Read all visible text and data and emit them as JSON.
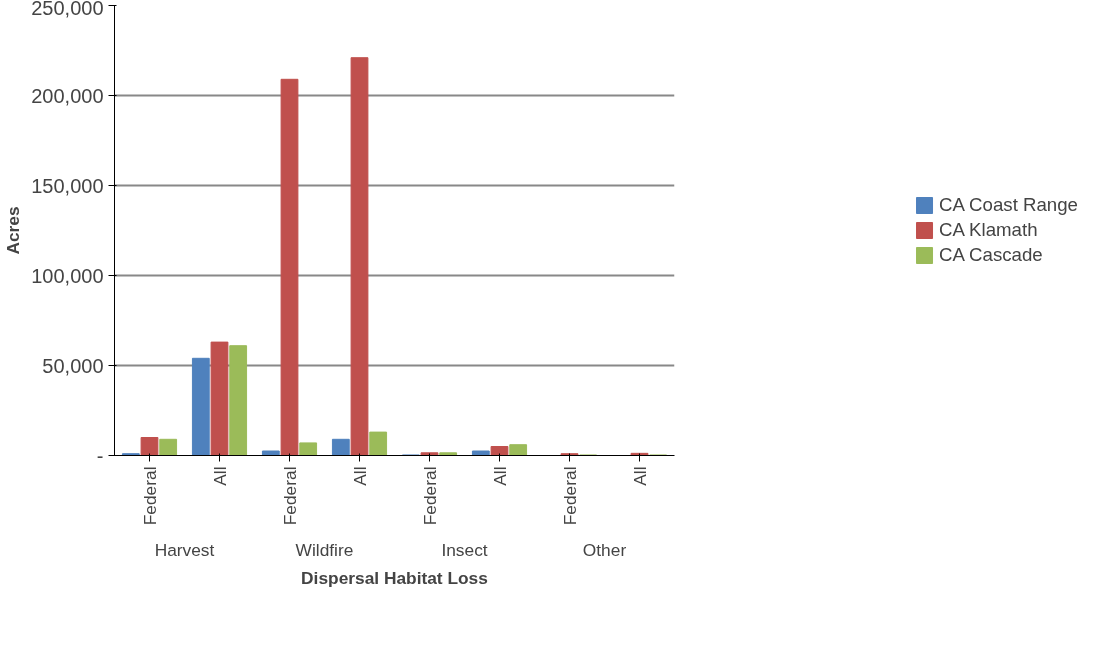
{
  "chart_data": {
    "type": "bar",
    "xlabel": "Dispersal Habitat Loss",
    "ylabel": "Acres",
    "categories": [
      "Federal",
      "All",
      "Federal",
      "All",
      "Federal",
      "All",
      "Federal",
      "All"
    ],
    "annotations": [
      "Harvest",
      "Wildfire",
      "Insect",
      "Other"
    ],
    "series": [
      {
        "name": "CA Coast Range",
        "color": "#4f81bd",
        "values": [
          1000,
          54000,
          2500,
          9000,
          300,
          2500,
          null,
          null
        ]
      },
      {
        "name": "CA Klamath",
        "color": "#c0504d",
        "values": [
          10000,
          63000,
          209000,
          221000,
          1500,
          5000,
          1000,
          1200
        ]
      },
      {
        "name": "CA Cascade",
        "color": "#9bbb59",
        "values": [
          9000,
          61000,
          7000,
          13000,
          1500,
          6000,
          300,
          300
        ]
      }
    ],
    "ylim": [
      0,
      250000
    ],
    "yticks": [
      {
        "value": 0,
        "label": "-"
      },
      {
        "value": 50000,
        "label": "50,000"
      },
      {
        "value": 100000,
        "label": "100,000"
      },
      {
        "value": 150000,
        "label": "150,000"
      },
      {
        "value": 200000,
        "label": "200,000"
      },
      {
        "value": 250000,
        "label": "250,000"
      }
    ],
    "grid": "y",
    "legend": "right"
  }
}
